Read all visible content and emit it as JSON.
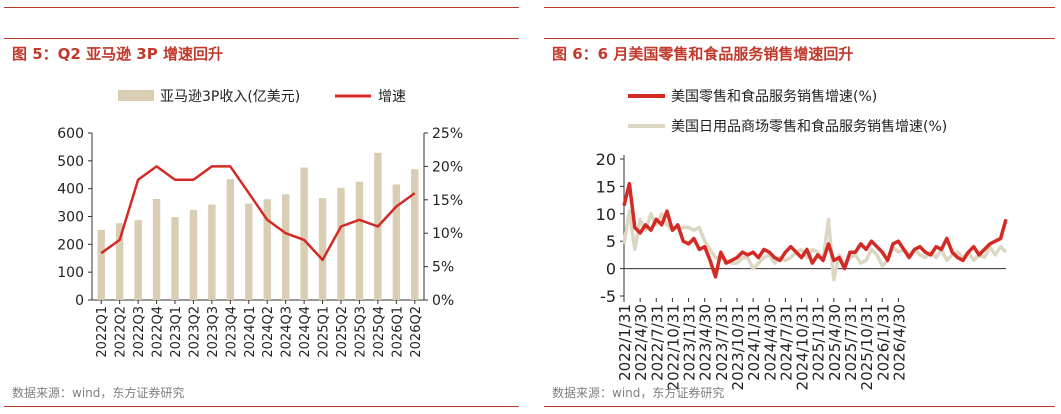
{
  "left": {
    "title": "图 5：Q2 亚马逊 3P 增速回升",
    "source": "数据来源：wind，东方证券研究",
    "chart_data": {
      "type": "bar",
      "categories": [
        "2022Q1",
        "2022Q2",
        "2022Q3",
        "2022Q4",
        "2023Q1",
        "2023Q2",
        "2023Q3",
        "2023Q4",
        "2024Q1",
        "2024Q2",
        "2024Q3",
        "2024Q4",
        "2025Q1",
        "2025Q2",
        "2025Q3",
        "2025Q4",
        "2026Q1",
        "2026Q2"
      ],
      "series": [
        {
          "name": "亚马逊3P收入(亿美元)",
          "type": "bar",
          "axis": "left",
          "color": "#d9cdb4",
          "values": [
            252,
            276,
            287,
            363,
            298,
            324,
            343,
            434,
            346,
            362,
            380,
            476,
            366,
            403,
            425,
            529,
            415,
            470
          ]
        },
        {
          "name": "增速",
          "type": "line",
          "axis": "right",
          "color": "#d42a25",
          "values": [
            7,
            9,
            18,
            20,
            18,
            18,
            20,
            20,
            16,
            12,
            10,
            9,
            6,
            11,
            12,
            11,
            14,
            16
          ]
        }
      ],
      "left_axis": {
        "ticks": [
          "0",
          "100",
          "200",
          "300",
          "400",
          "500",
          "600"
        ],
        "ylim": [
          0,
          600
        ]
      },
      "right_axis": {
        "ticks": [
          "0%",
          "5%",
          "10%",
          "15%",
          "20%",
          "25%"
        ],
        "ylim": [
          0,
          25
        ]
      },
      "legend_placement": "top-center"
    }
  },
  "right": {
    "title": "图 6：6 月美国零售和食品服务销售增速回升",
    "source": "数据来源：wind，东方证券研究",
    "chart_data": {
      "type": "line",
      "ylim": [
        -5,
        20
      ],
      "y_ticks": [
        "20",
        "15",
        "10",
        "5",
        "0",
        "-5"
      ],
      "x_ticks": [
        "2022/1/31",
        "2022/4/30",
        "2022/7/31",
        "2022/10/31",
        "2023/1/31",
        "2023/4/30",
        "2023/7/31",
        "2023/10/31",
        "2024/1/31",
        "2024/4/30",
        "2024/7/31",
        "2024/10/31",
        "2025/1/31",
        "2025/4/30",
        "2025/7/31",
        "2025/10/31",
        "2026/1/31",
        "2026/4/30"
      ],
      "legend_placement": "top-left",
      "series": [
        {
          "name": "美国零售和食品服务销售增速(%)",
          "color": "#d42a25",
          "values": [
            11.5,
            15.5,
            7.5,
            6.5,
            8,
            7,
            9,
            8,
            10.5,
            7,
            8,
            5,
            4.5,
            5.5,
            3.5,
            4,
            1.5,
            -1.5,
            3,
            1,
            1.5,
            2,
            3,
            2.5,
            3,
            2,
            3.5,
            3,
            2,
            1.5,
            3,
            4,
            3,
            2,
            3.5,
            1,
            2.5,
            1.5,
            4.5,
            1.5,
            2,
            0,
            3,
            3,
            4.5,
            3.5,
            5,
            4,
            3,
            1.5,
            4.5,
            5,
            3.5,
            2,
            3.5,
            4,
            3,
            2.5,
            4,
            3.5,
            5.5,
            3,
            2,
            1.5,
            3,
            4,
            2.5,
            3.5,
            4.5,
            5,
            5.5,
            9
          ]
        },
        {
          "name": "美国日用品商场零售和食品服务销售增速(%)",
          "color": "#ddd6c2",
          "values": [
            4.5,
            10.5,
            3.5,
            9,
            7,
            10,
            8,
            10,
            8,
            7,
            7.5,
            7.5,
            7.5,
            7,
            7.5,
            5,
            3.5,
            2,
            2,
            1.5,
            1,
            1,
            2,
            2,
            0,
            1,
            2,
            2.5,
            1,
            2,
            1.5,
            2,
            3,
            3.5,
            2,
            3.5,
            3,
            1.5,
            9,
            -2,
            2.5,
            1,
            2,
            2.5,
            1,
            1.5,
            3.5,
            2.5,
            0.5,
            1.5,
            4,
            3,
            3.5,
            2.5,
            3.5,
            2.5,
            2,
            3,
            2,
            3.5,
            1.5,
            2.5,
            3,
            2,
            3,
            1.5,
            2.5,
            2,
            4,
            2.5,
            4,
            3
          ]
        }
      ]
    }
  }
}
